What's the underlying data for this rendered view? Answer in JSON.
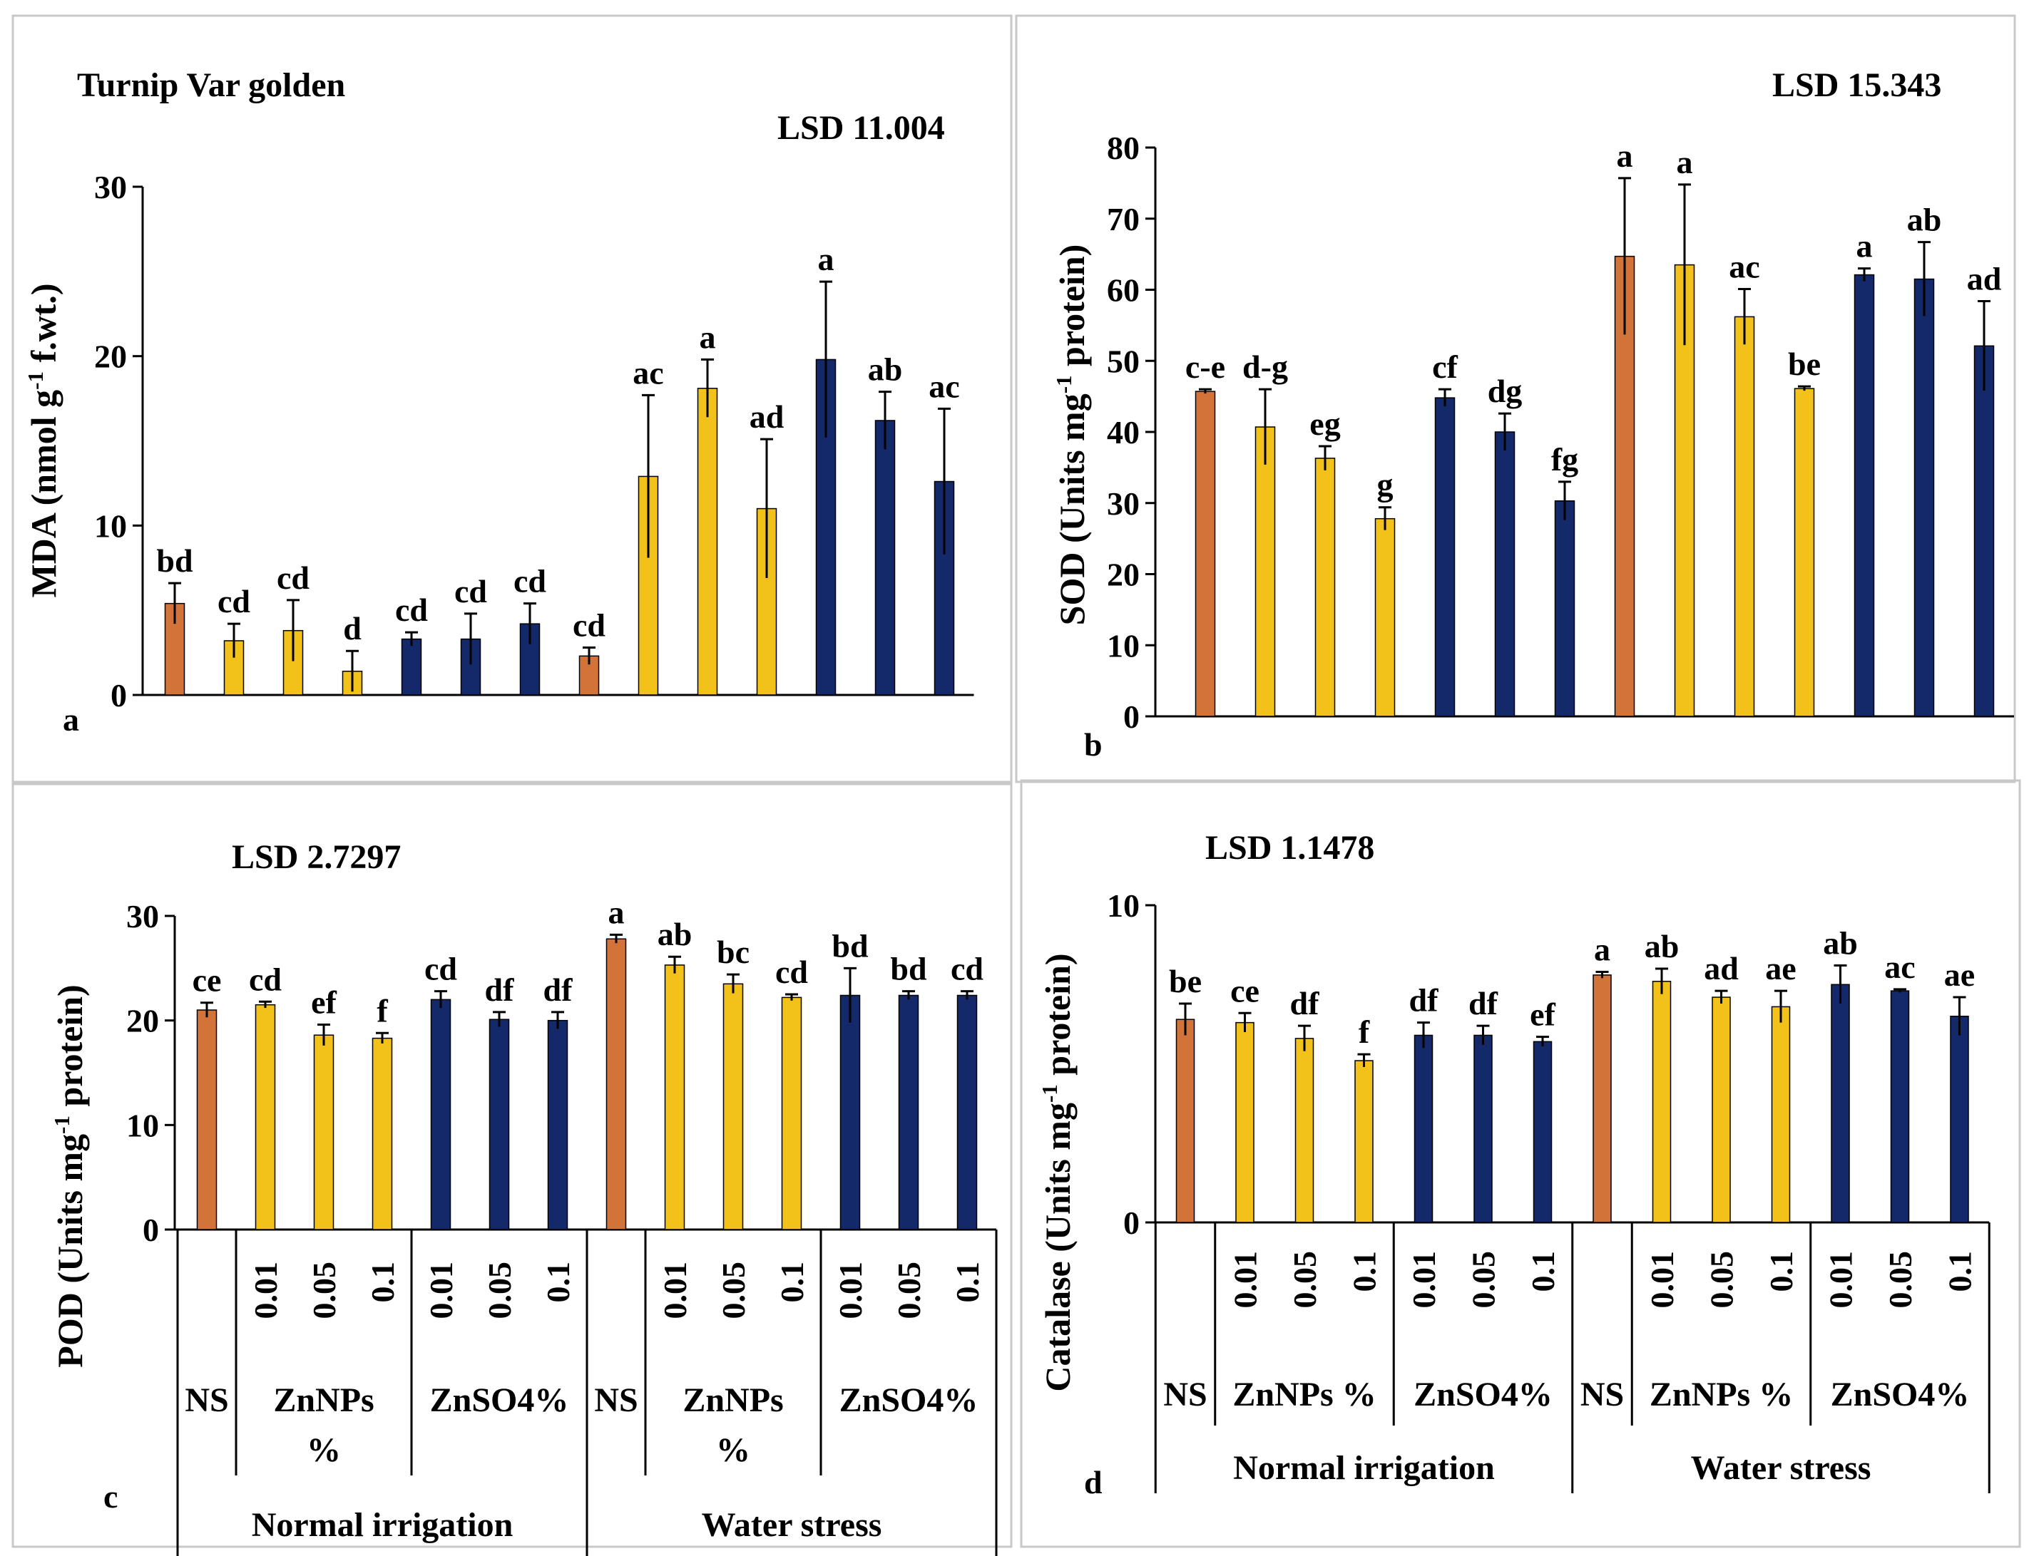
{
  "figure": {
    "panels_in_order": [
      "a",
      "b",
      "c",
      "d"
    ],
    "colors": {
      "ns": "#D2733A",
      "znnps": "#F2C21B",
      "znso4": "#13296A",
      "axis": "#000000",
      "panel_border": "#c8c8c8",
      "error_bar": "#000000"
    }
  },
  "chart_data": [
    {
      "panel_letter": "a",
      "type": "bar",
      "title": "Turnip Var golden",
      "lsd": "LSD 11.004",
      "ylabel": "MDA (nmol g-1 f.wt.)",
      "ylabel_parts": [
        "MDA (nmol g",
        "-1",
        " f.wt.)"
      ],
      "ylim": [
        0,
        30
      ],
      "yticks": [
        0,
        10,
        20,
        30
      ],
      "groups": [
        "ns",
        "znnps",
        "znnps",
        "znnps",
        "znso4",
        "znso4",
        "znso4",
        "ns",
        "znnps",
        "znnps",
        "znnps",
        "znso4",
        "znso4",
        "znso4"
      ],
      "values": [
        5.4,
        3.2,
        3.8,
        1.4,
        3.3,
        3.3,
        4.2,
        2.3,
        12.9,
        18.1,
        11.0,
        19.8,
        16.2,
        12.6
      ],
      "errors": [
        1.2,
        1.0,
        1.8,
        1.2,
        0.4,
        1.5,
        1.2,
        0.5,
        4.8,
        1.7,
        4.1,
        4.6,
        1.7,
        4.3
      ],
      "sig_letters": [
        "bd",
        "cd",
        "cd",
        "d",
        "cd",
        "cd",
        "cd",
        "cd",
        "ac",
        "a",
        "ad",
        "a",
        "ab",
        "ac"
      ]
    },
    {
      "panel_letter": "b",
      "type": "bar",
      "lsd": "LSD 15.343",
      "ylabel": "SOD (Units mg-1 protein)",
      "ylabel_parts": [
        "SOD (Units mg",
        "-1",
        " protein)"
      ],
      "ylim": [
        0,
        80
      ],
      "yticks": [
        0,
        10,
        20,
        30,
        40,
        50,
        60,
        70,
        80
      ],
      "groups": [
        "ns",
        "znnps",
        "znnps",
        "znnps",
        "znso4",
        "znso4",
        "znso4",
        "ns",
        "znnps",
        "znnps",
        "znnps",
        "znso4",
        "znso4",
        "znso4"
      ],
      "values": [
        45.7,
        40.7,
        36.3,
        27.8,
        44.8,
        40.0,
        30.3,
        64.7,
        63.5,
        56.2,
        46.1,
        62.1,
        61.5,
        52.1
      ],
      "errors": [
        0.3,
        5.3,
        1.7,
        1.6,
        1.2,
        2.6,
        2.7,
        11.0,
        11.3,
        3.9,
        0.3,
        0.9,
        5.2,
        6.3
      ],
      "sig_letters": [
        "c-e",
        "d-g",
        "eg",
        "g",
        "cf",
        "dg",
        "fg",
        "a",
        "a",
        "ac",
        "be",
        "a",
        "ab",
        "ad"
      ]
    },
    {
      "panel_letter": "c",
      "type": "bar",
      "lsd": "LSD 2.7297",
      "ylabel": "POD (Units mg-1 protein)",
      "ylabel_parts": [
        "POD (Units mg",
        "-1",
        " protein)"
      ],
      "ylim": [
        0,
        30
      ],
      "yticks": [
        0,
        10,
        20,
        30
      ],
      "groups": [
        "ns",
        "znnps",
        "znnps",
        "znnps",
        "znso4",
        "znso4",
        "znso4",
        "ns",
        "znnps",
        "znnps",
        "znnps",
        "znso4",
        "znso4",
        "znso4"
      ],
      "values": [
        21.0,
        21.5,
        18.6,
        18.3,
        22.0,
        20.1,
        20.0,
        27.8,
        25.3,
        23.5,
        22.2,
        22.4,
        22.4,
        22.4
      ],
      "errors": [
        0.7,
        0.3,
        1.0,
        0.5,
        0.8,
        0.7,
        0.8,
        0.4,
        0.8,
        0.9,
        0.3,
        2.6,
        0.4,
        0.4
      ],
      "sig_letters": [
        "ce",
        "cd",
        "ef",
        "f",
        "cd",
        "df",
        "df",
        "a",
        "ab",
        "bc",
        "cd",
        "bd",
        "bd",
        "cd"
      ],
      "x_levels": [
        "",
        "0.01",
        "0.05",
        "0.1",
        "0.01",
        "0.05",
        "0.1",
        "",
        "0.01",
        "0.05",
        "0.1",
        "0.01",
        "0.05",
        "0.1"
      ],
      "treatments": [
        {
          "label_lines": [
            "NS"
          ],
          "start": 0,
          "end": 0
        },
        {
          "label_lines": [
            "ZnNPs",
            "%"
          ],
          "start": 1,
          "end": 3
        },
        {
          "label_lines": [
            "ZnSO4%"
          ],
          "start": 4,
          "end": 6
        },
        {
          "label_lines": [
            "NS"
          ],
          "start": 7,
          "end": 7
        },
        {
          "label_lines": [
            "ZnNPs",
            "%"
          ],
          "start": 8,
          "end": 10
        },
        {
          "label_lines": [
            "ZnSO4%"
          ],
          "start": 11,
          "end": 13
        }
      ],
      "conditions": [
        {
          "label": "Normal irrigation",
          "start": 0,
          "end": 6
        },
        {
          "label": "Water stress",
          "start": 7,
          "end": 13
        }
      ]
    },
    {
      "panel_letter": "d",
      "type": "bar",
      "lsd": "LSD 1.1478",
      "ylabel": "Catalase (Units mg-1 protein)",
      "ylabel_parts": [
        "Catalase (Units mg",
        "-1",
        " protein)"
      ],
      "ylim": [
        0,
        10
      ],
      "yticks": [
        0,
        10
      ],
      "groups": [
        "ns",
        "znnps",
        "znnps",
        "znnps",
        "znso4",
        "znso4",
        "znso4",
        "ns",
        "znnps",
        "znnps",
        "znnps",
        "znso4",
        "znso4",
        "znso4"
      ],
      "values": [
        6.4,
        6.3,
        5.8,
        5.1,
        5.9,
        5.9,
        5.7,
        7.8,
        7.6,
        7.1,
        6.8,
        7.5,
        7.3,
        6.5
      ],
      "errors": [
        0.5,
        0.3,
        0.4,
        0.2,
        0.4,
        0.3,
        0.15,
        0.1,
        0.4,
        0.2,
        0.5,
        0.6,
        0.05,
        0.6
      ],
      "sig_letters": [
        "be",
        "ce",
        "df",
        "f",
        "df",
        "df",
        "ef",
        "a",
        "ab",
        "ad",
        "ae",
        "ab",
        "ac",
        "ae"
      ],
      "x_levels": [
        "",
        "0.01",
        "0.05",
        "0.1",
        "0.01",
        "0.05",
        "0.1",
        "",
        "0.01",
        "0.05",
        "0.1",
        "0.01",
        "0.05",
        "0.1"
      ],
      "treatments": [
        {
          "label_lines": [
            "NS"
          ],
          "start": 0,
          "end": 0
        },
        {
          "label_lines": [
            "ZnNPs %"
          ],
          "start": 1,
          "end": 3
        },
        {
          "label_lines": [
            "ZnSO4%"
          ],
          "start": 4,
          "end": 6
        },
        {
          "label_lines": [
            "NS"
          ],
          "start": 7,
          "end": 7
        },
        {
          "label_lines": [
            "ZnNPs %"
          ],
          "start": 8,
          "end": 10
        },
        {
          "label_lines": [
            "ZnSO4%"
          ],
          "start": 11,
          "end": 13
        }
      ],
      "conditions": [
        {
          "label": "Normal irrigation",
          "start": 0,
          "end": 6
        },
        {
          "label": "Water stress",
          "start": 7,
          "end": 13
        }
      ]
    }
  ]
}
